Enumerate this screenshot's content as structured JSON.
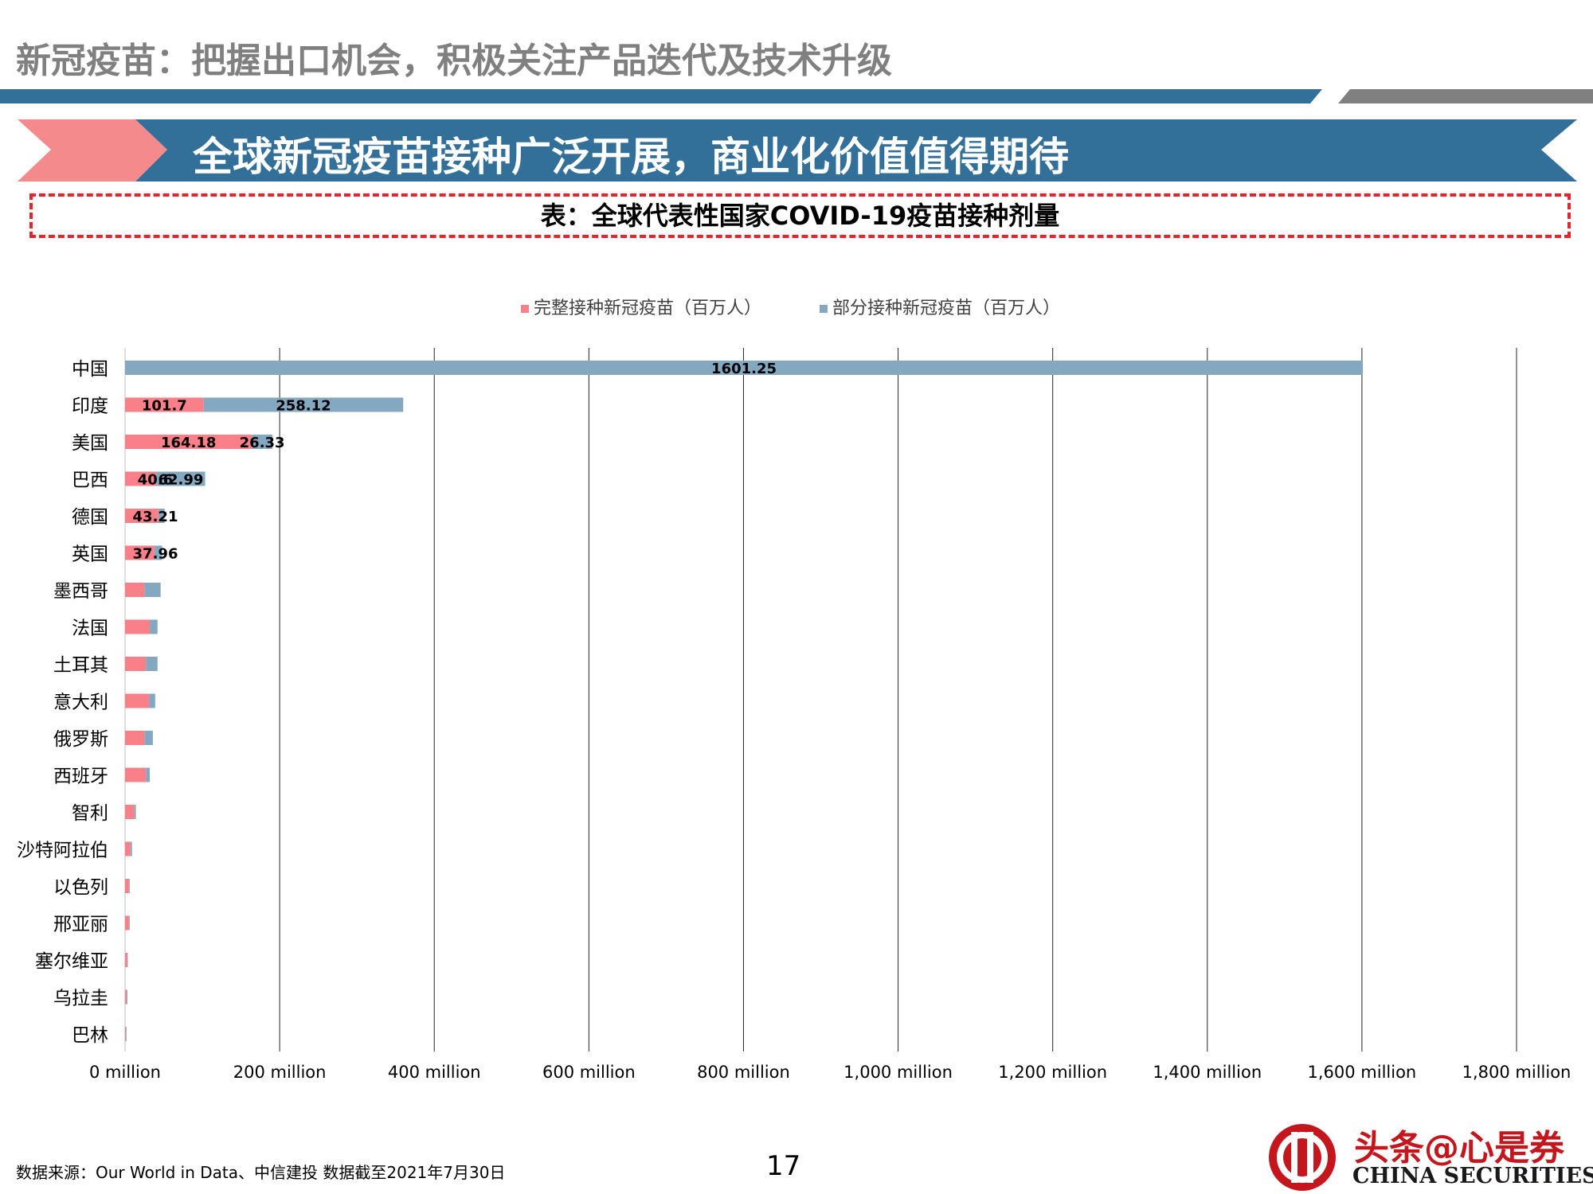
{
  "header": {
    "title": "新冠疫苗：把握出口机会，积极关注产品迭代及技术升级",
    "banner": "全球新冠疫苗接种广泛开展，商业化价值值得期待",
    "caption": "表：全球代表性国家COVID-19疫苗接种剂量"
  },
  "footer": {
    "source": "数据来源：Our World in Data、中信建投 数据截至2021年7月30日",
    "page_number": "17",
    "brand_cn": "头条@心是券",
    "brand_en": "CHINA SECURITIES"
  },
  "colors": {
    "title_gray": "#808080",
    "band_blue": "#326f99",
    "band_gray": "#808080",
    "banner_pink": "#f58a8d",
    "caption_red": "#e8232d",
    "full_series": "#f97f88",
    "partial_series": "#85a8c1",
    "brand_red": "#c4161c"
  },
  "chart_data": {
    "type": "bar",
    "orientation": "horizontal",
    "stacked": true,
    "legend_position": "top-center",
    "grid": "vertical",
    "xlim": [
      0,
      1800
    ],
    "x_ticks": [
      0,
      200,
      400,
      600,
      800,
      1000,
      1200,
      1400,
      1600,
      1800
    ],
    "x_tick_labels": [
      "0 million",
      "200 million",
      "400 million",
      "600 million",
      "800 million",
      "1,000 million",
      "1,200 million",
      "1,400 million",
      "1,600 million",
      "1,800 million"
    ],
    "categories": [
      "中国",
      "印度",
      "美国",
      "巴西",
      "德国",
      "英国",
      "墨西哥",
      "法国",
      "土耳其",
      "意大利",
      "俄罗斯",
      "西班牙",
      "智利",
      "沙特阿拉伯",
      "以色列",
      "邢亚丽",
      "塞尔维亚",
      "乌拉圭",
      "巴林"
    ],
    "series": [
      {
        "name": "完整接种新冠疫苗（百万人）",
        "values": [
          0,
          101.7,
          164.18,
          40.6,
          43.21,
          37.96,
          25,
          32,
          27,
          31,
          25,
          27,
          12,
          7,
          5,
          5,
          2.5,
          2,
          0.8
        ],
        "labels": [
          "",
          "101.7",
          "164.18",
          "40.6",
          "43.21",
          "37.96",
          "",
          "",
          "",
          "",
          "",
          "",
          "",
          "",
          "",
          "",
          "",
          "",
          ""
        ]
      },
      {
        "name": "部分接种新冠疫苗（百万人）",
        "values": [
          1601.25,
          258.12,
          26.33,
          62.99,
          8,
          10,
          21,
          10,
          15,
          8,
          11,
          5,
          2,
          2,
          0.6,
          0.6,
          1,
          0.8,
          0.4
        ],
        "labels": [
          "1601.25",
          "258.12",
          "26.33",
          "62.99",
          "",
          "",
          "",
          "",
          "",
          "",
          "",
          "",
          "",
          "",
          "",
          "",
          "",
          "",
          ""
        ]
      }
    ]
  }
}
